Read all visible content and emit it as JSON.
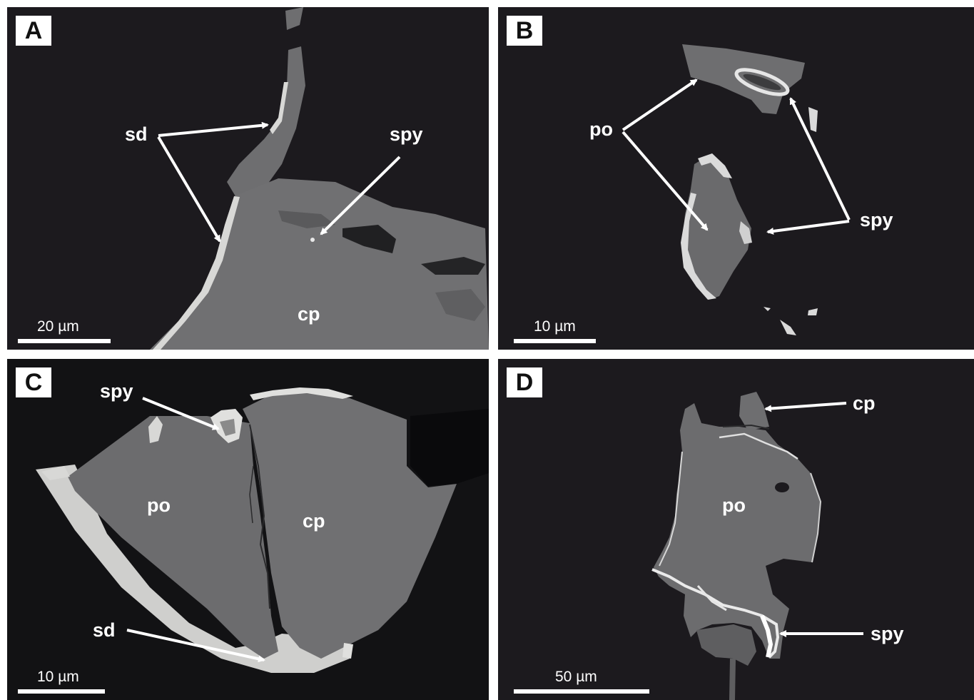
{
  "panels": {
    "a": {
      "letter": "A",
      "labels": {
        "sd": "sd",
        "spy": "spy",
        "cp": "cp"
      },
      "scale_bar": "20 µm"
    },
    "b": {
      "letter": "B",
      "labels": {
        "po": "po",
        "spy": "spy"
      },
      "scale_bar": "10 µm"
    },
    "c": {
      "letter": "C",
      "labels": {
        "spy": "spy",
        "po": "po",
        "cp": "cp",
        "sd": "sd"
      },
      "scale_bar": "10 µm"
    },
    "d": {
      "letter": "D",
      "labels": {
        "cp": "cp",
        "po": "po",
        "spy": "spy"
      },
      "scale_bar": "50 µm"
    }
  },
  "colors": {
    "background": "#1c1a1e",
    "grain_gray": "#6e6e70",
    "bright_phase": "#d8d8d6",
    "annotation": "#ffffff"
  }
}
